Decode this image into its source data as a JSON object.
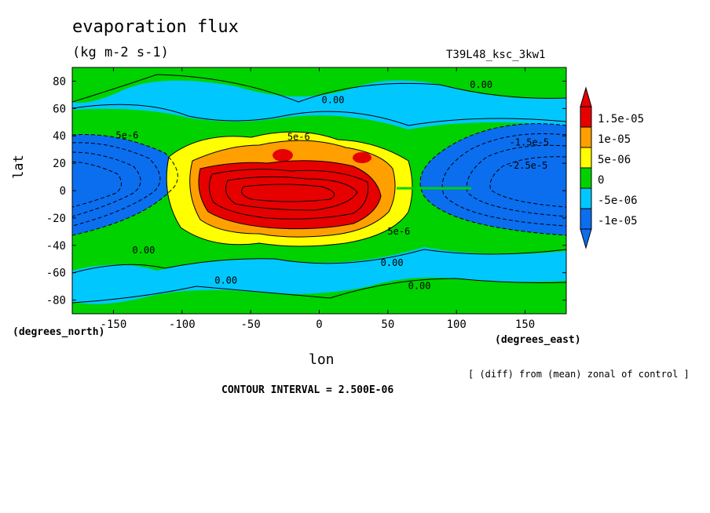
{
  "chart_data": {
    "type": "heatmap",
    "title": "evaporation flux",
    "units": "(kg m-2 s-1)",
    "run_id": "T39L48_ksc_3kw1",
    "xlabel": "lon",
    "ylabel": "lat",
    "x_unit_label": "(degrees_east)",
    "y_unit_label": "(degrees_north)",
    "xlim": [
      -180,
      180
    ],
    "ylim": [
      -90,
      90
    ],
    "xticks": [
      -150,
      -100,
      -50,
      0,
      50,
      100,
      150
    ],
    "yticks": [
      -80,
      -60,
      -40,
      -20,
      0,
      20,
      40,
      60,
      80
    ],
    "xtick_labels": [
      "-150",
      "-100",
      "-50",
      "0",
      "50",
      "100",
      "150"
    ],
    "ytick_labels": [
      "-80",
      "-60",
      "-40",
      "-20",
      "0",
      "20",
      "40",
      "60",
      "80"
    ],
    "colorbar": {
      "labels": [
        "1.5e-05",
        "1e-05",
        "5e-06",
        "0",
        "-5e-06",
        "-1e-05"
      ],
      "levels": [
        -1.5e-05,
        -1e-05,
        -5e-06,
        0,
        5e-06,
        1e-05,
        1.5e-05
      ],
      "colors": [
        "#0a6eef",
        "#00c8ff",
        "#00d200",
        "#ffff00",
        "#ffa000",
        "#e60000"
      ],
      "extend": "both"
    },
    "contour_labels": [
      {
        "text": "0.00",
        "lon": 10,
        "lat": 64
      },
      {
        "text": "0.00",
        "lon": 118,
        "lat": 75
      },
      {
        "text": "5e-6",
        "lon": -140,
        "lat": 38
      },
      {
        "text": "5e-6",
        "lon": -15,
        "lat": 37
      },
      {
        "text": "-1.5e-5",
        "lon": 153,
        "lat": 33
      },
      {
        "text": "-2.5e-5",
        "lon": 152,
        "lat": 16
      },
      {
        "text": "0.00",
        "lon": -128,
        "lat": -46
      },
      {
        "text": "5e-6",
        "lon": 58,
        "lat": -32
      },
      {
        "text": "0.00",
        "lon": 53,
        "lat": -55
      },
      {
        "text": "0.00",
        "lon": -68,
        "lat": -68
      },
      {
        "text": "0.00",
        "lon": 73,
        "lat": -72
      }
    ],
    "contour_interval_text": "CONTOUR INTERVAL = 2.500E-06",
    "note": "[ (diff) from (mean) zonal of control ]",
    "legend_position": "right"
  }
}
